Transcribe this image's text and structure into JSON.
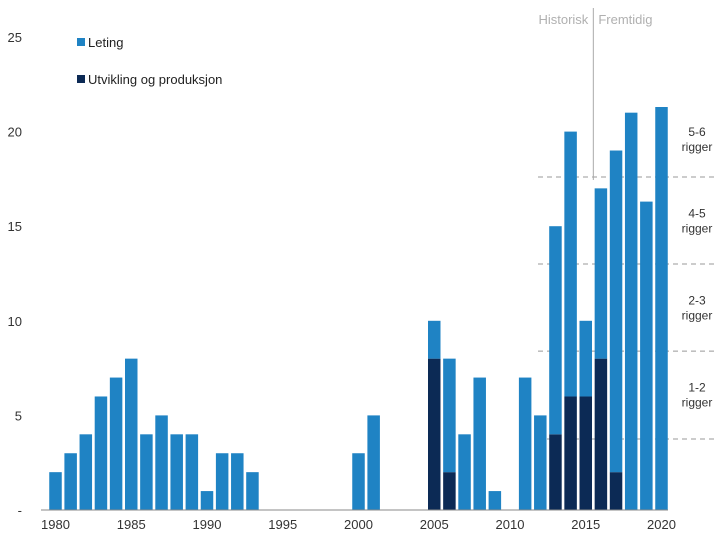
{
  "chart_data": {
    "type": "bar",
    "stacked": true,
    "x": [
      1980,
      1981,
      1982,
      1983,
      1984,
      1985,
      1986,
      1987,
      1988,
      1989,
      1990,
      1991,
      1992,
      1993,
      1994,
      1995,
      1996,
      1997,
      1998,
      1999,
      2000,
      2001,
      2002,
      2003,
      2004,
      2005,
      2006,
      2007,
      2008,
      2009,
      2010,
      2011,
      2012,
      2013,
      2014,
      2015,
      2016,
      2017,
      2018,
      2019,
      2020
    ],
    "x_tick_labels": [
      "1980",
      "1985",
      "1990",
      "1995",
      "2000",
      "2005",
      "2010",
      "2015",
      "2020"
    ],
    "y_tick_labels": [
      "-",
      "5",
      "10",
      "15",
      "20",
      "25"
    ],
    "ylim": [
      0,
      25
    ],
    "series": [
      {
        "name": "Utvikling og produksjon",
        "color": "#0c2a55",
        "values": [
          0,
          0,
          0,
          0,
          0,
          0,
          0,
          0,
          0,
          0,
          0,
          0,
          0,
          0,
          0,
          0,
          0,
          0,
          0,
          0,
          0,
          0,
          0,
          0,
          0,
          8,
          2,
          0,
          0,
          0,
          0,
          0,
          0,
          4,
          6,
          6,
          8,
          2,
          0,
          0,
          0
        ]
      },
      {
        "name": "Leting",
        "color": "#1f83c4",
        "values": [
          2,
          3,
          4,
          6,
          7,
          8,
          4,
          5,
          4,
          4,
          1,
          3,
          3,
          2,
          0,
          0,
          0,
          0,
          0,
          0,
          3,
          5,
          0,
          0,
          0,
          2,
          6,
          4,
          7,
          1,
          0,
          7,
          5,
          11,
          14,
          4,
          9,
          17,
          21,
          16.3,
          21.3
        ]
      }
    ],
    "legend": [
      "Leting",
      "Utvikling og produksjon"
    ],
    "legend_placement": "top-left",
    "annotations": {
      "historisk": "Historisk",
      "fremtidig": "Fremtidig",
      "divider_year": 2015.5,
      "rig_thresholds": [
        3.75,
        8.4,
        13,
        17.6
      ],
      "rig_labels": [
        {
          "lines": [
            "1-2",
            "rigger"
          ],
          "level": 6.1
        },
        {
          "lines": [
            "2-3",
            "rigger"
          ],
          "level": 10.7
        },
        {
          "lines": [
            "4-5",
            "rigger"
          ],
          "level": 15.3
        },
        {
          "lines": [
            "5-6",
            "rigger"
          ],
          "level": 19.6
        }
      ]
    }
  }
}
